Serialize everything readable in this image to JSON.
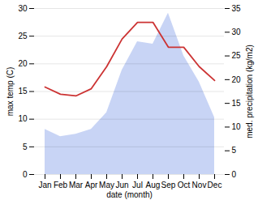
{
  "chart_data": {
    "type": "line",
    "categories": [
      "Jan",
      "Feb",
      "Mar",
      "Apr",
      "May",
      "Jun",
      "Jul",
      "Aug",
      "Sep",
      "Oct",
      "Nov",
      "Dec"
    ],
    "series": [
      {
        "type": "area",
        "axis": "y2",
        "color": "#c8d4f5",
        "values": [
          9.5,
          8.0,
          8.5,
          9.5,
          13.0,
          22.0,
          28.0,
          27.5,
          34.0,
          25.0,
          19.5,
          12.0
        ]
      },
      {
        "type": "line",
        "color": "#cc3333",
        "values": [
          15.8,
          14.5,
          14.2,
          15.5,
          19.5,
          24.5,
          27.5,
          27.5,
          23.0,
          23.0,
          19.5,
          17.0
        ]
      }
    ],
    "xlabel": "date (month)",
    "ylabel": "max temp (C)",
    "y2label": "med. precipitation (kg/m2)",
    "ylim": [
      0,
      30
    ],
    "yticks": [
      0,
      5,
      10,
      15,
      20,
      25,
      30
    ],
    "y2lim": [
      0,
      35
    ],
    "y2ticks": [
      0,
      5,
      10,
      15,
      20,
      25,
      30,
      35
    ],
    "grid": true
  }
}
